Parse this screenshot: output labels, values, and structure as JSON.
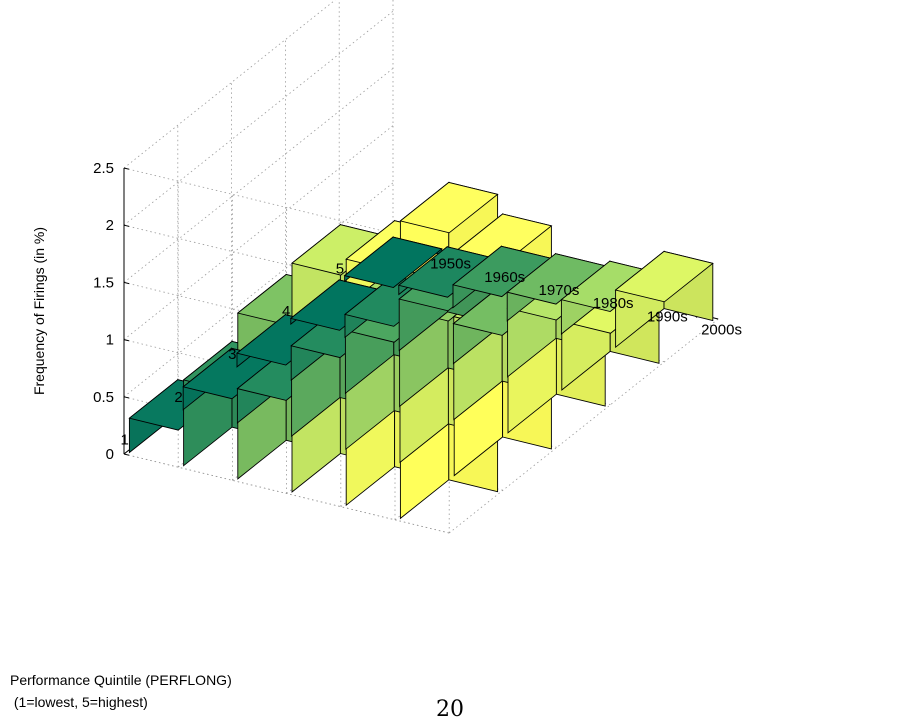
{
  "chart_data": {
    "type": "bar3d",
    "title": "",
    "zlabel": "Frequency of Firings (in %)",
    "quintile_axis_label": [
      "Performance Quintile (PERFLONG)",
      " (1=lowest, 5=highest)"
    ],
    "quintiles": [
      "1",
      "2",
      "3",
      "4",
      "5"
    ],
    "decades": [
      "1950s",
      "1960s",
      "1970s",
      "1980s",
      "1990s",
      "2000s"
    ],
    "zlim": [
      0,
      2.5
    ],
    "zticks": [
      "0",
      "0.5",
      "1",
      "1.5",
      "2",
      "2.5"
    ],
    "grid": true,
    "values_by_quintile": [
      [
        0.3,
        0.75,
        1.45,
        2.0,
        2.15,
        2.6
      ],
      [
        0.2,
        0.3,
        0.9,
        1.25,
        1.5,
        1.95
      ],
      [
        0.12,
        0.3,
        0.55,
        0.85,
        0.9,
        1.05
      ],
      [
        0.05,
        0.2,
        0.45,
        0.35,
        0.6,
        0.6
      ],
      [
        0.05,
        0.08,
        0.2,
        0.25,
        0.3,
        0.5
      ]
    ]
  },
  "page_number": "20"
}
